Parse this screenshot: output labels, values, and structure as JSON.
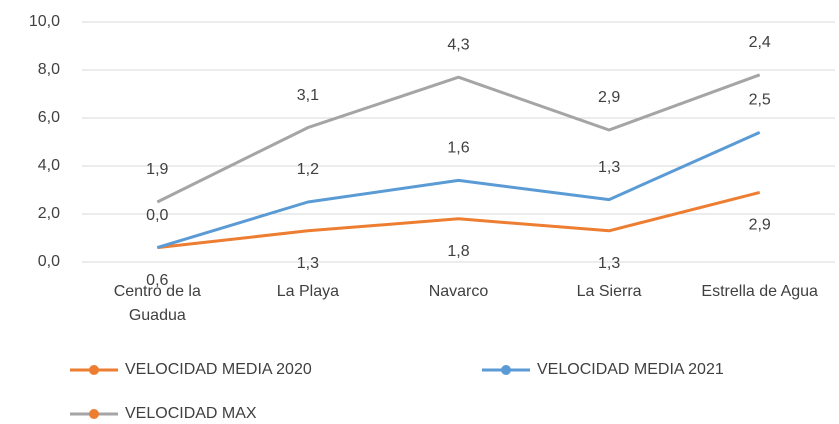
{
  "chart_data": {
    "type": "stacked-line",
    "categories": [
      "Centro de la Guadua",
      "La Playa",
      "Navarco",
      "La Sierra",
      "Estrella de Agua"
    ],
    "series": [
      {
        "name": "VELOCIDAD MEDIA 2020",
        "color": "#ed7d31",
        "values": [
          0.6,
          1.3,
          1.8,
          1.3,
          2.9
        ],
        "value_labels": [
          "0,6",
          "1,3",
          "1,8",
          "1,3",
          "2,9"
        ],
        "label_position": "below"
      },
      {
        "name": "VELOCIDAD MEDIA 2021",
        "color": "#5b9bd5",
        "values": [
          0.0,
          1.2,
          1.6,
          1.3,
          2.5
        ],
        "value_labels": [
          "0,0",
          "1,2",
          "1,6",
          "1,3",
          "2,5"
        ],
        "label_position": "above"
      },
      {
        "name": "VELOCIDAD MAX",
        "color": "#a5a5a5",
        "marker_color": "#ed7d31",
        "values": [
          1.9,
          3.1,
          4.3,
          2.9,
          2.4
        ],
        "value_labels": [
          "1,9",
          "3,1",
          "4,3",
          "2,9",
          "2,4"
        ],
        "label_position": "above"
      }
    ],
    "ylim": [
      0,
      10
    ],
    "yticks": [
      {
        "value": 0,
        "label": "0,0"
      },
      {
        "value": 2,
        "label": "2,0"
      },
      {
        "value": 4,
        "label": "4,0"
      },
      {
        "value": 6,
        "label": "6,0"
      },
      {
        "value": 8,
        "label": "8,0"
      },
      {
        "value": 10,
        "label": "10,0"
      }
    ],
    "grid": true,
    "legend": "bottom"
  }
}
